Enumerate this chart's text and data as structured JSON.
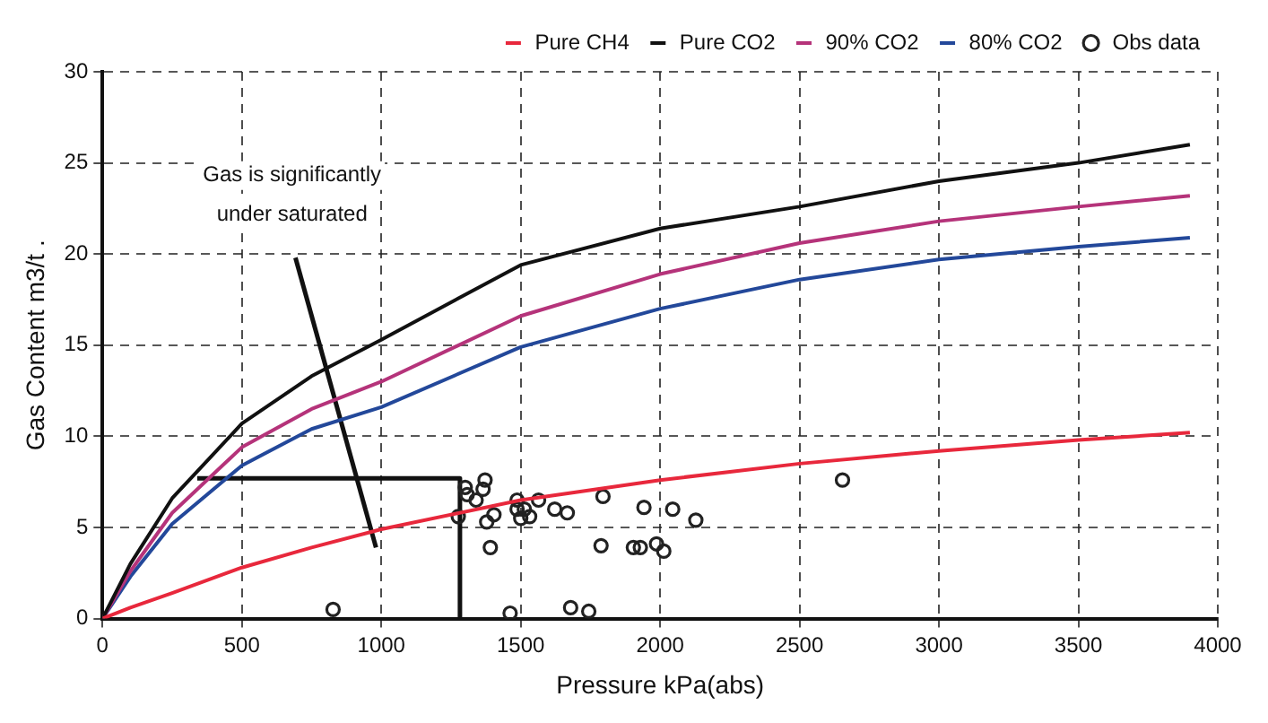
{
  "chart_data": {
    "type": "line",
    "xlabel": "Pressure kPa(abs)",
    "ylabel": "Gas Content m3/t .",
    "xlim": [
      0,
      4000
    ],
    "xticks": [
      0,
      500,
      1000,
      1500,
      2000,
      2500,
      3000,
      3500,
      4000
    ],
    "ylim": [
      0,
      30
    ],
    "yticks": [
      0,
      5,
      10,
      15,
      20,
      25,
      30
    ],
    "grid": true,
    "legend": "top",
    "series": [
      {
        "name": "Pure CH4",
        "color": "#e8283c",
        "x": [
          0,
          100,
          250,
          500,
          750,
          1000,
          1500,
          2000,
          2500,
          3000,
          3500,
          3900
        ],
        "values": [
          0,
          0.6,
          1.4,
          2.8,
          3.9,
          4.9,
          6.5,
          7.6,
          8.5,
          9.2,
          9.8,
          10.2
        ]
      },
      {
        "name": "Pure CO2",
        "color": "#111111",
        "x": [
          0,
          100,
          250,
          500,
          750,
          1000,
          1500,
          2000,
          2500,
          3000,
          3500,
          3900
        ],
        "values": [
          0,
          3.0,
          6.6,
          10.7,
          13.3,
          15.3,
          19.4,
          21.4,
          22.6,
          24.0,
          25.0,
          26.0
        ]
      },
      {
        "name": "90% CO2",
        "color": "#b5337a",
        "x": [
          0,
          100,
          250,
          500,
          750,
          1000,
          1500,
          2000,
          2500,
          3000,
          3500,
          3900
        ],
        "values": [
          0,
          2.6,
          5.8,
          9.4,
          11.5,
          13.0,
          16.6,
          18.9,
          20.6,
          21.8,
          22.6,
          23.2
        ]
      },
      {
        "name": "80% CO2",
        "color": "#23489a",
        "x": [
          0,
          100,
          250,
          500,
          750,
          1000,
          1500,
          2000,
          2500,
          3000,
          3500,
          3900
        ],
        "values": [
          0,
          2.3,
          5.2,
          8.4,
          10.4,
          11.6,
          14.9,
          17.0,
          18.6,
          19.7,
          20.4,
          20.9
        ]
      },
      {
        "name": "Obs data",
        "type": "scatter",
        "marker": "circle",
        "color": "#222222",
        "x": [
          827,
          1276,
          1301,
          1308,
          1340,
          1372,
          1365,
          1378,
          1404,
          1391,
          1462,
          1487,
          1487,
          1500,
          1513,
          1532,
          1564,
          1622,
          1667,
          1679,
          1744,
          1795,
          1788,
          1904,
          1929,
          1942,
          1987,
          2013,
          2045,
          2128,
          2654
        ],
        "values": [
          0.5,
          5.6,
          7.2,
          6.8,
          6.5,
          7.6,
          7.1,
          5.3,
          5.7,
          3.9,
          0.3,
          6.5,
          6.0,
          5.5,
          6.0,
          5.6,
          6.5,
          6.0,
          5.8,
          0.6,
          0.4,
          6.7,
          4.0,
          3.9,
          3.9,
          6.1,
          4.1,
          3.7,
          6.0,
          5.4,
          7.6
        ]
      },
      {
        "type": "line",
        "color": "#111111",
        "x": [
          340,
          1282,
          1282
        ],
        "values": [
          7.7,
          7.7,
          0
        ]
      },
      {
        "type": "line",
        "color": "#111111",
        "x": [
          692,
          981
        ],
        "values": [
          19.8,
          3.9
        ]
      }
    ],
    "annotations": [
      "Gas is significantly\nunder saturated"
    ]
  }
}
